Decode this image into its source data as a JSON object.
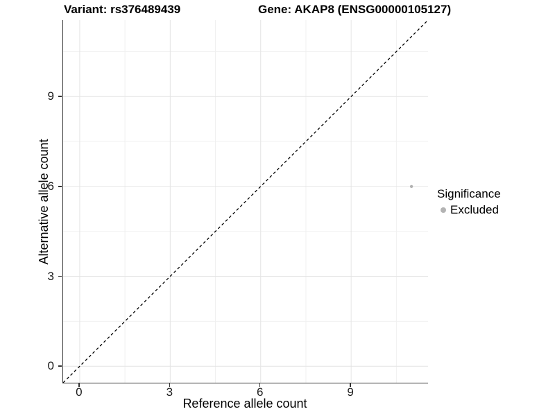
{
  "titles": {
    "variant": "Variant: rs376489439",
    "gene": "Gene: AKAP8 (ENSG00000105127)"
  },
  "colors": {
    "axis_line": "#333333",
    "tick_label": "#1a1a1a",
    "grid_major": "#e4e4e4",
    "grid_minor": "#f0f0f0",
    "diagonal_line": "#000000",
    "excluded_point": "#b3b3b3",
    "background": "#ffffff"
  },
  "chart_data": {
    "type": "scatter",
    "titles": [
      "Variant: rs376489439",
      "Gene: AKAP8 (ENSG00000105127)"
    ],
    "xlabel": "Reference allele count",
    "ylabel": "Alternative allele count",
    "xlim": [
      -0.55,
      11.55
    ],
    "ylim": [
      -0.55,
      11.55
    ],
    "x_ticks": [
      0,
      3,
      6,
      9
    ],
    "y_ticks": [
      0,
      3,
      6,
      9
    ],
    "x_minor_ticks": [
      1.5,
      4.5,
      7.5,
      10.5
    ],
    "y_minor_ticks": [
      1.5,
      4.5,
      7.5,
      10.5
    ],
    "grid": true,
    "reference_line": {
      "equation": "y = x",
      "style": "dashed",
      "color": "#000000"
    },
    "series": [
      {
        "name": "Excluded",
        "color": "#b3b3b3",
        "point_radius": 2.2,
        "points": [
          {
            "x": 11,
            "y": 6
          }
        ]
      }
    ],
    "legend": {
      "title": "Significance",
      "position": "right",
      "items": [
        {
          "label": "Excluded",
          "color": "#b3b3b3"
        }
      ]
    }
  }
}
